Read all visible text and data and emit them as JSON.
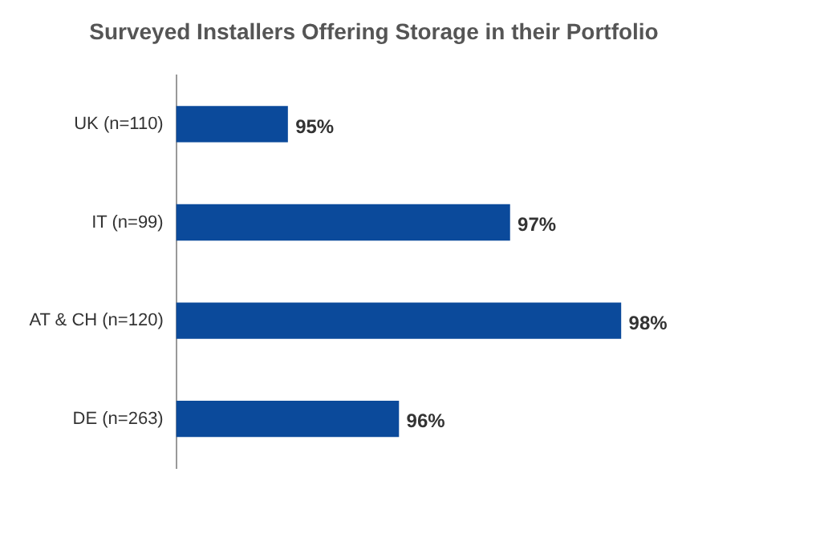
{
  "chart_data": {
    "type": "bar",
    "orientation": "horizontal",
    "title": "Surveyed Installers Offering Storage in their Portfolio",
    "categories": [
      "UK (n=110)",
      "IT (n=99)",
      "AT & CH (n=120)",
      "DE (n=263)"
    ],
    "values": [
      95,
      97,
      98,
      96
    ],
    "color": "#0b4a9b",
    "value_labels": [
      "95%",
      "97%",
      "98%",
      "96%"
    ],
    "tick_labels": "y",
    "grid": false,
    "legend": false
  }
}
